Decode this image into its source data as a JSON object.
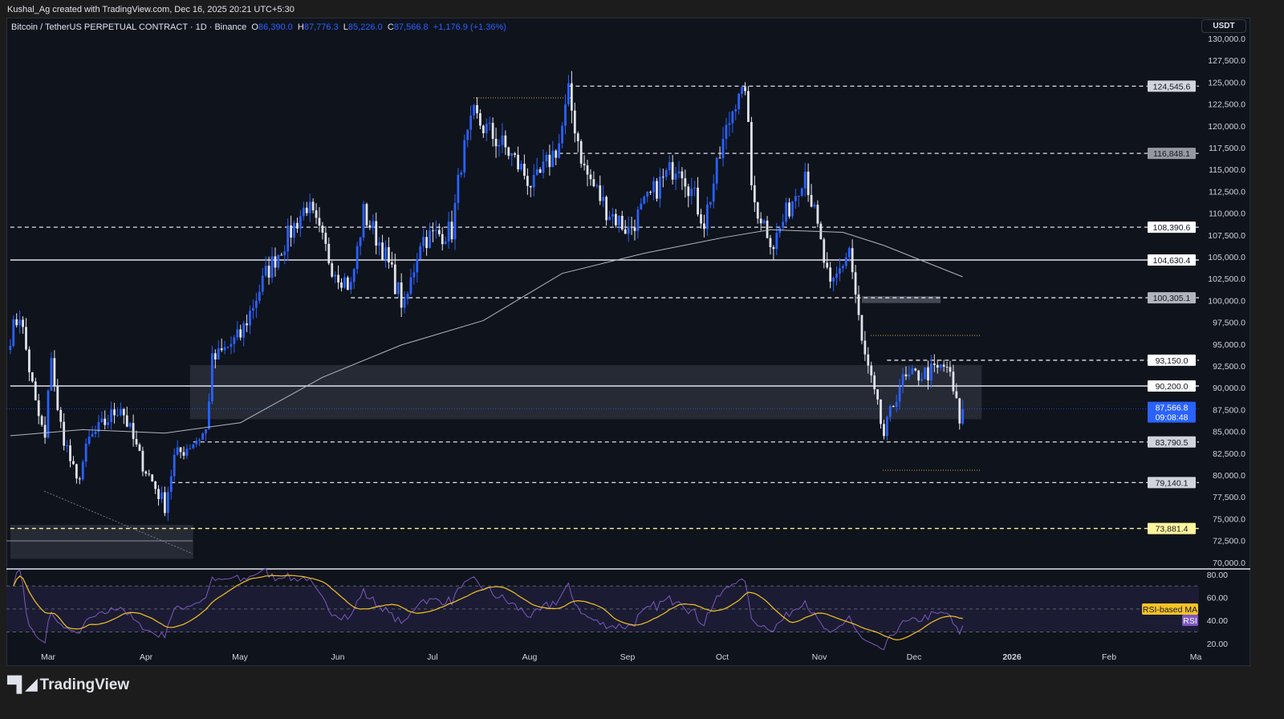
{
  "credit": "Kushal_Ag created with TradingView.com, Dec 16, 2025 20:21 UTC+5:30",
  "legend": {
    "symbol": "Bitcoin / TetherUS PERPETUAL CONTRACT · 1D · Binance",
    "open_label": "O",
    "open": "86,390.0",
    "high_label": "H",
    "high": "87,776.3",
    "low_label": "L",
    "low": "85,226.0",
    "close_label": "C",
    "close": "87,566.8",
    "change": "+1,176.9 (+1.36%)"
  },
  "currency": "USDT",
  "logo": {
    "text": "TradingView"
  },
  "colors": {
    "up": "#2962ff",
    "down": "#e0e3eb",
    "ma200": "#b2b5be",
    "rsi": "#7e57c2",
    "rsi_ma": "#f7c325",
    "background": "#0f131c",
    "level_yellow": "#fff59d"
  },
  "chart_data": [
    {
      "type": "candlestick",
      "title": "Bitcoin / TetherUS PERPETUAL CONTRACT · 1D · Binance",
      "x_ticks": [
        "Mar",
        "Apr",
        "May",
        "Jun",
        "Jul",
        "Aug",
        "Sep",
        "Oct",
        "Nov",
        "Dec",
        "2026",
        "Feb",
        "Ma"
      ],
      "y_ticks": [
        "130,000.0",
        "127,500.0",
        "125,000.0",
        "122,500.0",
        "120,000.0",
        "117,500.0",
        "115,000.0",
        "112,500.0",
        "110,000.0",
        "107,500.0",
        "105,000.0",
        "102,500.0",
        "100,000.0",
        "97,500.0",
        "95,000.0",
        "92,500.0",
        "90,000.0",
        "87,500.0",
        "85,000.0",
        "82,500.0",
        "80,000.0",
        "77,500.0",
        "75,000.0",
        "72,500.0",
        "70,000.0"
      ],
      "ylim": [
        70000,
        130000
      ],
      "grid": false,
      "close_keypoints": [
        [
          "2025-02-17",
          96000
        ],
        [
          "2025-02-20",
          98500
        ],
        [
          "2025-02-25",
          88000
        ],
        [
          "2025-02-28",
          84000
        ],
        [
          "2025-03-02",
          94000
        ],
        [
          "2025-03-04",
          87000
        ],
        [
          "2025-03-10",
          79000
        ],
        [
          "2025-03-14",
          84000
        ],
        [
          "2025-03-24",
          88000
        ],
        [
          "2025-03-30",
          82000
        ],
        [
          "2025-04-07",
          76500
        ],
        [
          "2025-04-10",
          82000
        ],
        [
          "2025-04-20",
          85000
        ],
        [
          "2025-04-22",
          93000
        ],
        [
          "2025-05-01",
          96000
        ],
        [
          "2025-05-09",
          103000
        ],
        [
          "2025-05-22",
          111000
        ],
        [
          "2025-05-30",
          104000
        ],
        [
          "2025-06-05",
          101500
        ],
        [
          "2025-06-09",
          110000
        ],
        [
          "2025-06-15",
          106000
        ],
        [
          "2025-06-22",
          99000
        ],
        [
          "2025-06-27",
          107000
        ],
        [
          "2025-07-07",
          108000
        ],
        [
          "2025-07-10",
          116000
        ],
        [
          "2025-07-14",
          121000
        ],
        [
          "2025-07-25",
          117000
        ],
        [
          "2025-08-02",
          113000
        ],
        [
          "2025-08-10",
          118000
        ],
        [
          "2025-08-13",
          123500
        ],
        [
          "2025-08-18",
          115000
        ],
        [
          "2025-08-25",
          110500
        ],
        [
          "2025-09-01",
          108000
        ],
        [
          "2025-09-10",
          113000
        ],
        [
          "2025-09-17",
          116000
        ],
        [
          "2025-09-25",
          109000
        ],
        [
          "2025-10-01",
          118000
        ],
        [
          "2025-10-06",
          124500
        ],
        [
          "2025-10-09",
          121500
        ],
        [
          "2025-10-10",
          112000
        ],
        [
          "2025-10-17",
          106500
        ],
        [
          "2025-10-27",
          115000
        ],
        [
          "2025-11-04",
          101000
        ],
        [
          "2025-11-10",
          106000
        ],
        [
          "2025-11-14",
          95000
        ],
        [
          "2025-11-21",
          84500
        ],
        [
          "2025-11-26",
          90500
        ],
        [
          "2025-12-02",
          91500
        ],
        [
          "2025-12-08",
          92000
        ],
        [
          "2025-12-11",
          92500
        ],
        [
          "2025-12-15",
          86400
        ],
        [
          "2025-12-16",
          87566.8
        ]
      ],
      "ma200": [
        [
          "2025-02-17",
          84500
        ],
        [
          "2025-03-12",
          85200
        ],
        [
          "2025-04-07",
          84800
        ],
        [
          "2025-05-01",
          86000
        ],
        [
          "2025-05-27",
          91200
        ],
        [
          "2025-06-21",
          94900
        ],
        [
          "2025-07-17",
          97700
        ],
        [
          "2025-08-11",
          103100
        ],
        [
          "2025-09-06",
          105400
        ],
        [
          "2025-10-01",
          107200
        ],
        [
          "2025-10-16",
          108100
        ],
        [
          "2025-11-08",
          107800
        ],
        [
          "2025-11-21",
          106300
        ],
        [
          "2025-12-16",
          102700
        ]
      ],
      "levels": [
        {
          "value": 124545.6,
          "label": "124,545.6",
          "style": "dashed",
          "from": "2025-08-13",
          "badge": "#d1d4dc"
        },
        {
          "value": 116848.1,
          "label": "116,848.1",
          "style": "dashed",
          "from": "2025-08-10",
          "badge": "#9598a1"
        },
        {
          "value": 108390.6,
          "label": "108,390.6",
          "style": "dashed",
          "from": "2025-02-17",
          "badge": "#ffffff"
        },
        {
          "value": 104630.4,
          "label": "104,630.4",
          "style": "solid",
          "from": "2025-02-17",
          "badge": "#ffffff"
        },
        {
          "value": 100305.1,
          "label": "100,305.1",
          "style": "dashed",
          "from": "2025-06-05",
          "badge": "#b2b5be"
        },
        {
          "value": 93150,
          "label": "93,150.0",
          "style": "dashed",
          "from": "2025-11-22",
          "badge": "#ffffff"
        },
        {
          "value": 90200,
          "label": "90,200.0",
          "style": "solid",
          "from": "2025-02-17",
          "badge": "#ffffff"
        },
        {
          "value": 83790.5,
          "label": "83,790.5",
          "style": "dashed",
          "from": "2025-04-16",
          "badge": "#d1d4dc"
        },
        {
          "value": 79140.1,
          "label": "79,140.1",
          "style": "dashed",
          "from": "2025-04-09",
          "badge": "#d1d4dc"
        },
        {
          "value": 73881.4,
          "label": "73,881.4",
          "style": "dashed-yellow",
          "from": "2025-02-17",
          "badge": "#fff59d"
        }
      ],
      "zones": [
        {
          "from": "2025-04-15",
          "to": "2025-12-22",
          "low": 86400,
          "high": 92600
        },
        {
          "from": "2025-02-17",
          "to": "2025-04-16",
          "low": 70400,
          "high": 74300
        },
        {
          "from": "2025-11-14",
          "to": "2025-12-09",
          "low": 99700,
          "high": 100500
        }
      ],
      "last_price": {
        "label": "87,566.8",
        "countdown": "09:08:48",
        "value": 87566.8
      }
    },
    {
      "type": "line",
      "title": "RSI",
      "y_ticks": [
        "80.00",
        "60.00",
        "40.00",
        "20.00"
      ],
      "ylim": [
        10,
        83
      ],
      "band": [
        30,
        70
      ],
      "series": [
        {
          "name": "RSI"
        },
        {
          "name": "RSI-based MA"
        }
      ]
    }
  ]
}
